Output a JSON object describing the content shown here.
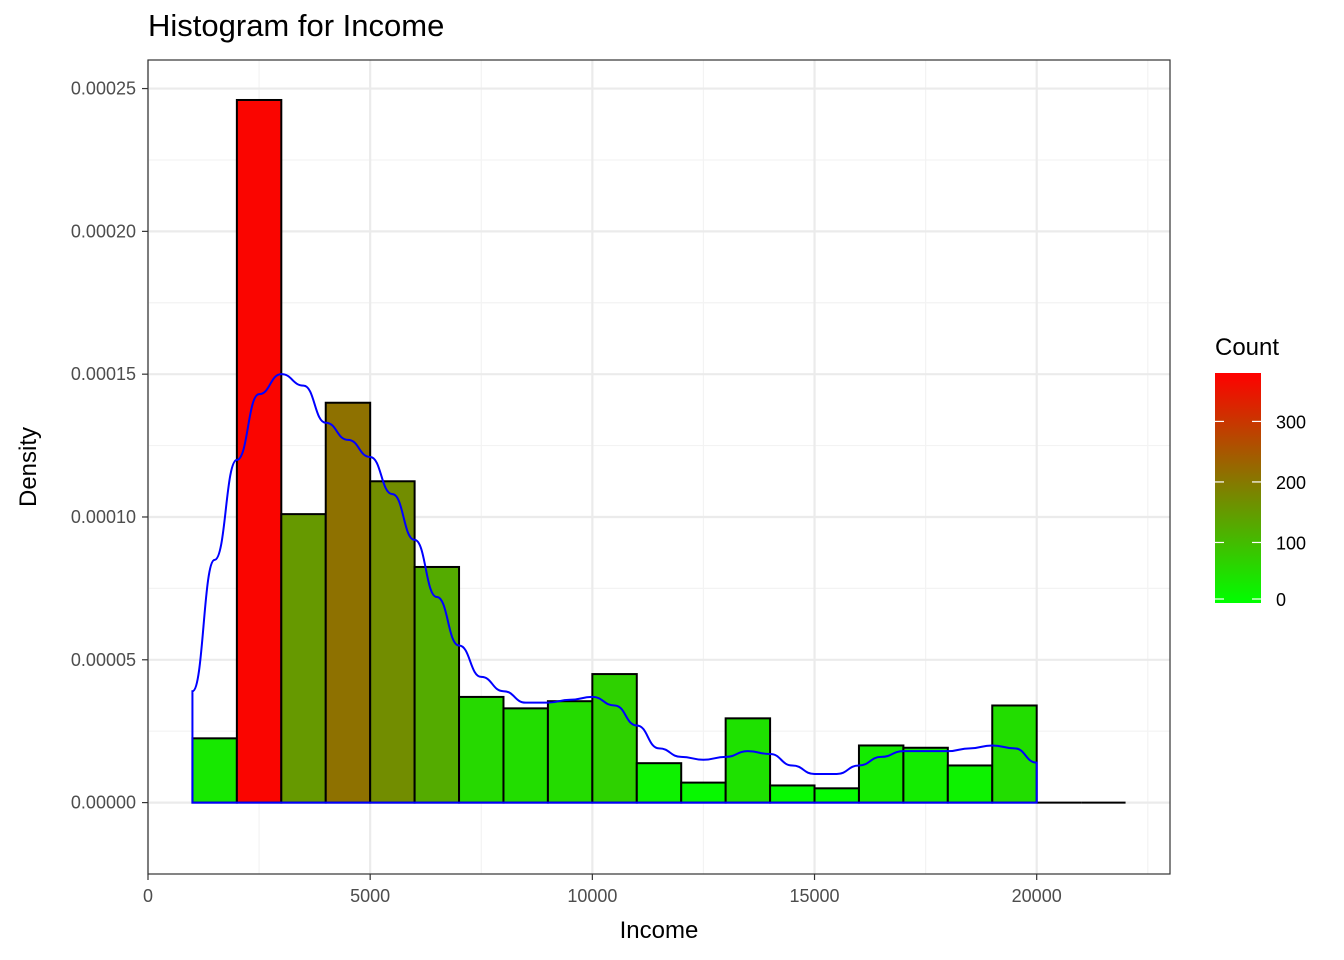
{
  "chart_data": {
    "type": "bar",
    "title": "Histogram for Income",
    "xlabel": "Income",
    "ylabel": "Density",
    "xlim": [
      0,
      23000
    ],
    "ylim": [
      -2.5e-05,
      0.00026
    ],
    "x_ticks": [
      0,
      5000,
      10000,
      15000,
      20000
    ],
    "x_tick_labels": [
      "0",
      "5000",
      "10000",
      "15000",
      "20000"
    ],
    "y_ticks": [
      0,
      5e-05,
      0.0001,
      0.00015,
      0.0002,
      0.00025
    ],
    "y_tick_labels": [
      "0.00000",
      "0.00005",
      "0.00010",
      "0.00015",
      "0.00020",
      "0.00025"
    ],
    "grid": true,
    "bins": [
      {
        "x0": 1000,
        "x1": 2000,
        "density": 2.25e-05,
        "count": 34
      },
      {
        "x0": 2000,
        "x1": 3000,
        "density": 0.000246,
        "count": 372
      },
      {
        "x0": 3000,
        "x1": 4000,
        "density": 0.000101,
        "count": 152
      },
      {
        "x0": 4000,
        "x1": 5000,
        "density": 0.00014,
        "count": 212
      },
      {
        "x0": 5000,
        "x1": 6000,
        "density": 0.0001125,
        "count": 170
      },
      {
        "x0": 6000,
        "x1": 7000,
        "density": 8.25e-05,
        "count": 125
      },
      {
        "x0": 7000,
        "x1": 8000,
        "density": 3.7e-05,
        "count": 56
      },
      {
        "x0": 8000,
        "x1": 9000,
        "density": 3.3e-05,
        "count": 50
      },
      {
        "x0": 9000,
        "x1": 10000,
        "density": 3.55e-05,
        "count": 54
      },
      {
        "x0": 10000,
        "x1": 11000,
        "density": 4.5e-05,
        "count": 68
      },
      {
        "x0": 11000,
        "x1": 12000,
        "density": 1.38e-05,
        "count": 21
      },
      {
        "x0": 12000,
        "x1": 13000,
        "density": 7e-06,
        "count": 11
      },
      {
        "x0": 13000,
        "x1": 14000,
        "density": 2.95e-05,
        "count": 45
      },
      {
        "x0": 14000,
        "x1": 15000,
        "density": 6e-06,
        "count": 9
      },
      {
        "x0": 15000,
        "x1": 16000,
        "density": 5e-06,
        "count": 7
      },
      {
        "x0": 16000,
        "x1": 17000,
        "density": 2e-05,
        "count": 30
      },
      {
        "x0": 17000,
        "x1": 18000,
        "density": 1.92e-05,
        "count": 29
      },
      {
        "x0": 18000,
        "x1": 19000,
        "density": 1.3e-05,
        "count": 20
      },
      {
        "x0": 19000,
        "x1": 20000,
        "density": 3.4e-05,
        "count": 51
      },
      {
        "x0": 20000,
        "x1": 21000,
        "density": 0,
        "count": 0
      },
      {
        "x0": 21000,
        "x1": 22000,
        "density": 0,
        "count": 0
      }
    ],
    "density_curve": {
      "color": "#0000ff",
      "x": [
        1000,
        1500,
        2000,
        2500,
        3000,
        3500,
        4000,
        4500,
        5000,
        5500,
        6000,
        6500,
        7000,
        7500,
        8000,
        8500,
        9000,
        9500,
        10000,
        10500,
        11000,
        11500,
        12000,
        12500,
        13000,
        13500,
        14000,
        14500,
        15000,
        15500,
        16000,
        16500,
        17000,
        17500,
        18000,
        18500,
        19000,
        19500,
        20000
      ],
      "y": [
        3.9e-05,
        8.5e-05,
        0.00012,
        0.000143,
        0.00015,
        0.000146,
        0.000133,
        0.000127,
        0.000121,
        0.000108,
        9.2e-05,
        7.2e-05,
        5.5e-05,
        4.4e-05,
        3.9e-05,
        3.5e-05,
        3.5e-05,
        3.6e-05,
        3.7e-05,
        3.4e-05,
        2.7e-05,
        1.9e-05,
        1.6e-05,
        1.5e-05,
        1.6e-05,
        1.8e-05,
        1.7e-05,
        1.3e-05,
        1e-05,
        1e-05,
        1.3e-05,
        1.6e-05,
        1.8e-05,
        1.8e-05,
        1.8e-05,
        1.9e-05,
        2e-05,
        1.9e-05,
        1.4e-05
      ]
    },
    "legend": {
      "title": "Count",
      "placement": "right",
      "type": "colorbar",
      "range": [
        0,
        380
      ],
      "breaks": [
        0,
        100,
        200,
        300
      ],
      "break_labels": [
        "0",
        "100",
        "200",
        "300"
      ],
      "low_color": "#00ff00",
      "high_color": "#ff0000"
    },
    "colors": {
      "bar_outline": "#000000",
      "panel_border": "#333333",
      "grid_major": "#ebebeb",
      "grid_minor": "#f3f3f3"
    }
  }
}
